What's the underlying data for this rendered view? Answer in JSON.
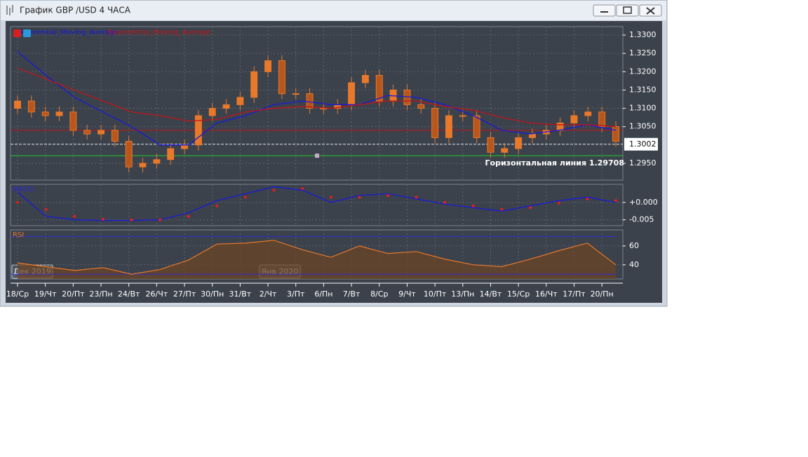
{
  "window": {
    "title": "График GBP /USD  4 ЧАСА"
  },
  "time_axis": {
    "labels": [
      "18/Ср",
      "19/Чт",
      "20/Пт",
      "23/Пн",
      "24/Вт",
      "26/Чт",
      "27/Пт",
      "30/Пн",
      "31/Вт",
      "2/Чт",
      "3/Пт",
      "6/Пн",
      "7/Вт",
      "8/Ср",
      "9/Чт",
      "10/Пт",
      "13/Пн",
      "14/Вт",
      "15/Ср",
      "16/Чт",
      "17/Пт",
      "20/Пн"
    ],
    "periods": [
      "Дек 2019",
      "Янв 2020"
    ]
  },
  "chart_data": [
    {
      "type": "candlestick",
      "color": "#e8782a",
      "open": [
        1.31,
        1.312,
        1.309,
        1.308,
        1.309,
        1.304,
        1.303,
        1.304,
        1.301,
        1.294,
        1.295,
        1.296,
        1.299,
        1.3,
        1.308,
        1.31,
        1.311,
        1.313,
        1.32,
        1.323,
        1.314,
        1.314,
        1.31,
        1.31,
        1.311,
        1.317,
        1.319,
        1.312,
        1.315,
        1.311,
        1.31,
        1.302,
        1.308,
        1.308,
        1.302,
        1.298,
        1.299,
        1.302,
        1.303,
        1.304,
        1.306,
        1.308,
        1.309,
        1.305
      ],
      "high": [
        1.3135,
        1.3135,
        1.3105,
        1.3105,
        1.3105,
        1.3055,
        1.3055,
        1.3055,
        1.3025,
        1.2965,
        1.2975,
        1.3005,
        1.3015,
        1.3095,
        1.3115,
        1.3125,
        1.3145,
        1.3215,
        1.3245,
        1.3245,
        1.3155,
        1.3155,
        1.3115,
        1.3125,
        1.3185,
        1.3205,
        1.3205,
        1.3165,
        1.3165,
        1.3125,
        1.3115,
        1.3095,
        1.3095,
        1.3095,
        1.3035,
        1.3005,
        1.3035,
        1.3045,
        1.3055,
        1.3075,
        1.3095,
        1.3105,
        1.3105,
        1.3065
      ],
      "low": [
        1.3085,
        1.3075,
        1.3065,
        1.3065,
        1.3025,
        1.3015,
        1.3015,
        1.2995,
        1.2925,
        1.2925,
        1.2935,
        1.2945,
        1.2975,
        1.2985,
        1.3065,
        1.3085,
        1.3095,
        1.3115,
        1.3185,
        1.3125,
        1.3125,
        1.3085,
        1.3085,
        1.3085,
        1.3095,
        1.3155,
        1.3105,
        1.3105,
        1.3095,
        1.3085,
        1.3005,
        1.3005,
        1.3065,
        1.3005,
        1.2965,
        1.2965,
        1.2975,
        1.3005,
        1.3015,
        1.3025,
        1.3045,
        1.3065,
        1.3035,
        1.2995
      ],
      "close": [
        1.312,
        1.309,
        1.308,
        1.309,
        1.304,
        1.303,
        1.304,
        1.301,
        1.294,
        1.295,
        1.296,
        1.299,
        1.3,
        1.308,
        1.31,
        1.311,
        1.313,
        1.32,
        1.323,
        1.314,
        1.314,
        1.31,
        1.31,
        1.311,
        1.317,
        1.319,
        1.312,
        1.315,
        1.311,
        1.31,
        1.302,
        1.308,
        1.308,
        1.302,
        1.298,
        1.299,
        1.302,
        1.303,
        1.304,
        1.306,
        1.308,
        1.309,
        1.305,
        1.301
      ],
      "series": [
        {
          "name": "Exponential_Moving_Average",
          "color": "#1a1ad8",
          "values": [
            1.3255,
            1.319,
            1.313,
            1.309,
            1.305,
            1.3,
            1.3,
            1.306,
            1.308,
            1.311,
            1.312,
            1.311,
            1.311,
            1.3135,
            1.313,
            1.311,
            1.308,
            1.304,
            1.303,
            1.304,
            1.3055,
            1.304
          ]
        },
        {
          "name": "Exponential_Moving_Average",
          "color": "#c0141a",
          "values": [
            1.321,
            1.318,
            1.315,
            1.312,
            1.309,
            1.308,
            1.3065,
            1.307,
            1.309,
            1.31,
            1.3105,
            1.31,
            1.311,
            1.312,
            1.312,
            1.3105,
            1.3095,
            1.3075,
            1.306,
            1.3055,
            1.3055,
            1.305
          ]
        }
      ],
      "levels": [
        {
          "value": 1.304,
          "color": "#c0141a"
        },
        {
          "value": 1.3002,
          "label": "1.3002",
          "color": "#e8e8e8"
        },
        {
          "value": 1.29708,
          "label": "Горизонтальная линия 1.29708",
          "color": "#22cc22"
        }
      ],
      "ylim": [
        1.2904,
        1.3323
      ],
      "yticks": [
        {
          "value": 1.33,
          "label": "1.3300"
        },
        {
          "value": 1.325,
          "label": "1.3250"
        },
        {
          "value": 1.32,
          "label": "1.3200"
        },
        {
          "value": 1.315,
          "label": "1.3150"
        },
        {
          "value": 1.31,
          "label": "1.3100"
        },
        {
          "value": 1.305,
          "label": "1.3050"
        },
        {
          "value": 1.295,
          "label": "1.2950"
        }
      ],
      "grid": true
    },
    {
      "type": "line",
      "title": "MACD",
      "series": [
        {
          "color": "#1a1ad8",
          "values": [
            0.003,
            -0.004,
            -0.005,
            -0.0052,
            -0.0052,
            -0.005,
            -0.003,
            0.0005,
            0.0025,
            0.0045,
            0.0035,
            0.0,
            0.002,
            0.0025,
            0.001,
            -0.0005,
            -0.0015,
            -0.0025,
            -0.001,
            0.0005,
            0.0015,
            0.0
          ]
        },
        {
          "color": "#e02020",
          "style": "dots",
          "values": [
            0.0,
            -0.002,
            -0.004,
            -0.0048,
            -0.005,
            -0.005,
            -0.004,
            -0.001,
            0.0015,
            0.0035,
            0.004,
            0.0015,
            0.0015,
            0.002,
            0.0015,
            0.0,
            -0.001,
            -0.002,
            -0.0015,
            -0.0002,
            0.001,
            0.0005
          ]
        }
      ],
      "ylim": [
        -0.0067,
        0.0052
      ],
      "yticks": [
        {
          "value": 0,
          "label": "+0.000"
        },
        {
          "value": -0.005,
          "label": "-0.005"
        }
      ],
      "grid": true
    },
    {
      "type": "area",
      "title": "RSI",
      "color": "#e8782a",
      "values": [
        42,
        38,
        34,
        37,
        30,
        35,
        45,
        62,
        63,
        66,
        56,
        48,
        60,
        52,
        54,
        46,
        40,
        38,
        46,
        55,
        63,
        40
      ],
      "levels": [
        70,
        30
      ],
      "ylim": [
        25,
        77
      ],
      "yticks": [
        40,
        60
      ],
      "grid": true
    }
  ]
}
